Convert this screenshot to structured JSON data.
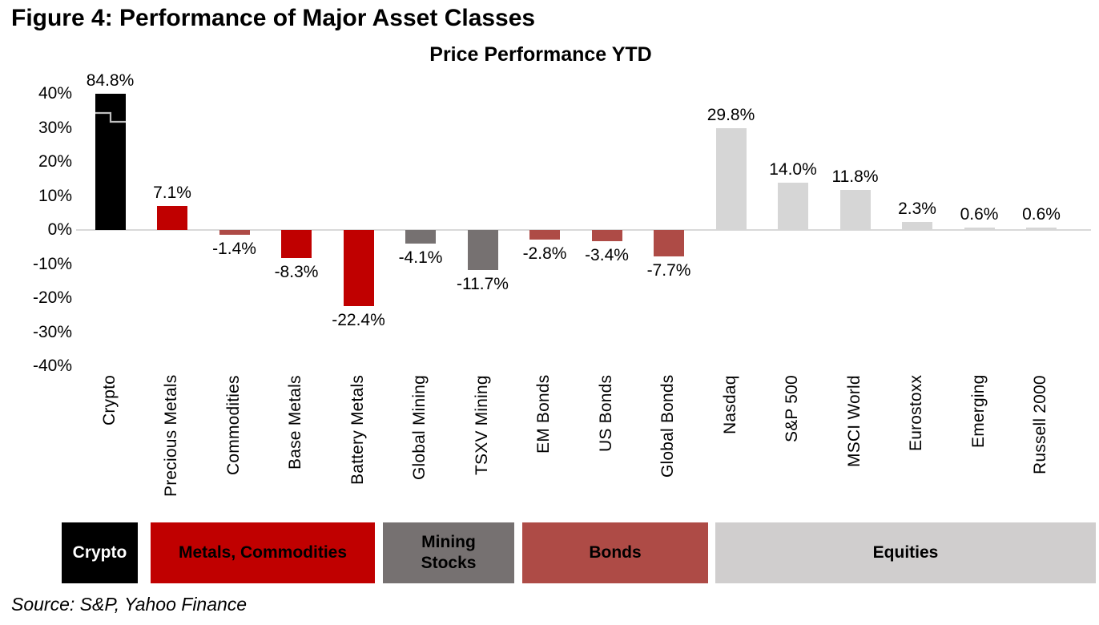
{
  "figure": {
    "title": "Figure 4: Performance of Major Asset Classes",
    "source": "Source: S&P, Yahoo Finance"
  },
  "chart_data": {
    "type": "bar",
    "title": "Price Performance YTD",
    "xlabel": "",
    "ylabel": "",
    "ylim": [
      -40,
      45
    ],
    "grid": false,
    "legend_position": "bottom-category-band",
    "y_ticks": [
      {
        "value": 40,
        "label": "40%"
      },
      {
        "value": 30,
        "label": "30%"
      },
      {
        "value": 20,
        "label": "20%"
      },
      {
        "value": 10,
        "label": "10%"
      },
      {
        "value": 0,
        "label": "0%"
      },
      {
        "value": -10,
        "label": "-10%"
      },
      {
        "value": -20,
        "label": "-20%"
      },
      {
        "value": -30,
        "label": "-30%"
      },
      {
        "value": -40,
        "label": "-40%"
      }
    ],
    "axis_break": {
      "category": "Crypto",
      "actual_value": 84.8,
      "displayed_cap": 40,
      "break_mark_color": "#BFBFBF"
    },
    "categories": [
      "Crypto",
      "Precious Metals",
      "Commodities",
      "Base Metals",
      "Battery Metals",
      "Global Mining",
      "TSXV Mining",
      "EM Bonds",
      "US Bonds",
      "Global Bonds",
      "Nasdaq",
      "S&P 500",
      "MSCI World",
      "Eurostoxx",
      "Emerging",
      "Russell 2000"
    ],
    "values": [
      84.8,
      7.1,
      -1.4,
      -8.3,
      -22.4,
      -4.1,
      -11.7,
      -2.8,
      -3.4,
      -7.7,
      29.8,
      14.0,
      11.8,
      2.3,
      0.6,
      0.6
    ],
    "labels": [
      "84.8%",
      "7.1%",
      "-1.4%",
      "-8.3%",
      "-22.4%",
      "-4.1%",
      "-11.7%",
      "-2.8%",
      "-3.4%",
      "-7.7%",
      "29.8%",
      "14.0%",
      "11.8%",
      "2.3%",
      "0.6%",
      "0.6%"
    ],
    "bar_colors": [
      "#000000",
      "#C00000",
      "#AE4B46",
      "#C00000",
      "#C00000",
      "#767171",
      "#767171",
      "#AE4B46",
      "#AE4B46",
      "#AE4B46",
      "#D6D6D6",
      "#D6D6D6",
      "#D6D6D6",
      "#D6D6D6",
      "#D6D6D6",
      "#D6D6D6"
    ],
    "groups": [
      {
        "label": "Crypto",
        "color": "#000000",
        "text_color": "#FFFFFF",
        "span": [
          0,
          0
        ]
      },
      {
        "label": "Metals, Commodities",
        "color": "#C00000",
        "text_color": "#000000",
        "span": [
          1,
          4
        ]
      },
      {
        "label": "Mining\nStocks",
        "color": "#767171",
        "text_color": "#000000",
        "span": [
          5,
          6
        ]
      },
      {
        "label": "Bonds",
        "color": "#AE4B46",
        "text_color": "#000000",
        "span": [
          7,
          9
        ]
      },
      {
        "label": "Equities",
        "color": "#D0CECE",
        "text_color": "#000000",
        "span": [
          10,
          15
        ]
      }
    ],
    "colors": {
      "crypto_black": "#000000",
      "metals_red": "#C00000",
      "bonds_muted_red": "#AE4B46",
      "mining_gray": "#767171",
      "equities_light_gray": "#D6D6D6",
      "equities_band_gray": "#D0CECE",
      "axis_line": "#D9D9D9"
    }
  }
}
